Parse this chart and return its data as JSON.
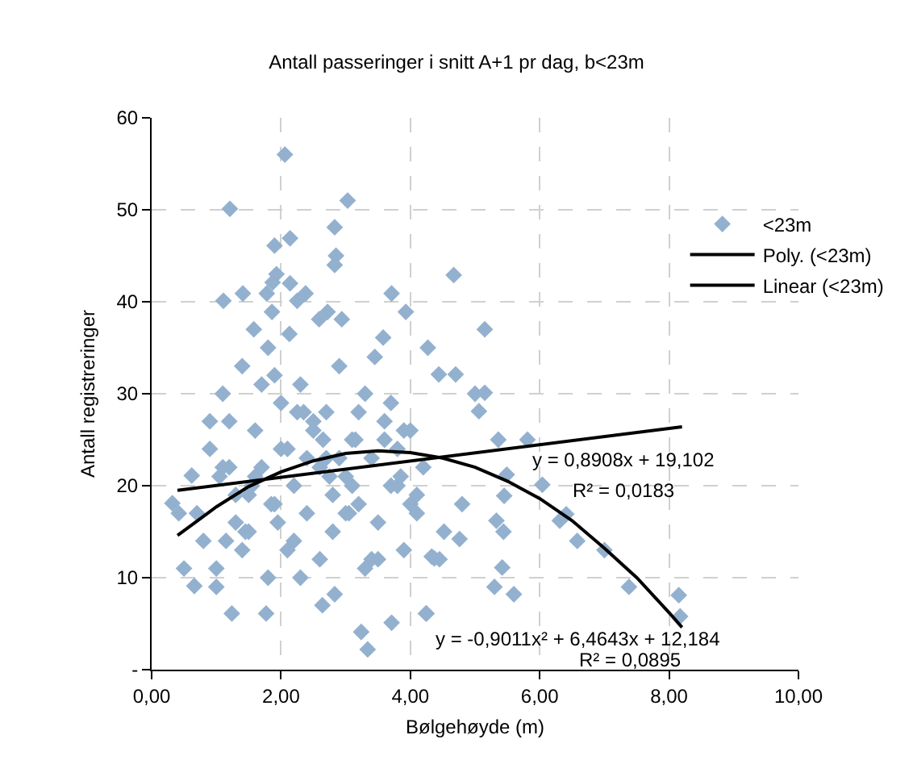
{
  "chart_data": {
    "type": "scatter",
    "title": "Antall passeringer i snitt A+1 pr dag, b<23m",
    "xlabel": "Bølgehøyde (m)",
    "ylabel": "Antall registreringer",
    "xlim": [
      0,
      10
    ],
    "xticks": [
      {
        "value": 0,
        "label": "0,00"
      },
      {
        "value": 2,
        "label": "2,00"
      },
      {
        "value": 4,
        "label": "4,00"
      },
      {
        "value": 6,
        "label": "6,00"
      },
      {
        "value": 8,
        "label": "8,00"
      },
      {
        "value": 10,
        "label": "10,00"
      }
    ],
    "ylim": [
      0,
      60
    ],
    "yticks": [
      {
        "value": 0,
        "label": "-"
      },
      10,
      20,
      30,
      40,
      50,
      60
    ],
    "grid": true,
    "legend": "right",
    "marker": "diamond",
    "series": [
      {
        "name": "<23m",
        "color": "#93b1cf",
        "x": [
          2.06,
          1.21,
          3.03,
          2.83,
          1.9,
          2.14,
          2.85,
          2.83,
          1.93,
          1.87,
          2.14,
          1.11,
          1.41,
          1.78,
          2.25,
          2.38,
          3.71,
          1.86,
          1.58,
          2.59,
          2.72,
          2.94,
          3.93,
          3.58,
          2.13,
          4.67,
          5.15,
          4.27,
          4.44,
          4.7,
          5.15,
          5.06,
          5.36,
          5.81,
          6.04,
          5.49,
          5.45,
          5.33,
          5.44,
          6.31,
          6.41,
          6.58,
          7.0,
          7.38,
          8.15,
          8.17,
          5.42,
          5.3,
          5.6,
          4.37,
          4.52,
          4.76,
          4.25,
          3.34,
          3.24,
          3.71,
          4.24,
          1.24,
          1.77,
          2.64,
          2.83,
          0.66,
          4.33,
          0.32,
          0.42,
          0.62,
          0.8,
          0.9,
          1.0,
          1.1,
          1.2,
          1.3,
          1.4,
          1.5,
          1.6,
          1.7,
          1.8,
          1.9,
          2.0,
          2.1,
          2.2,
          2.3,
          2.4,
          2.5,
          2.6,
          2.7,
          2.8,
          2.9,
          3.0,
          3.1,
          3.2,
          3.3,
          3.4,
          3.5,
          3.6,
          3.7,
          3.8,
          3.9,
          4.0,
          4.1,
          4.2,
          1.0,
          1.2,
          1.4,
          1.6,
          1.8,
          2.0,
          2.2,
          2.4,
          2.6,
          2.8,
          3.0,
          3.2,
          3.4,
          3.6,
          3.8,
          4.0,
          0.9,
          1.3,
          1.7,
          2.1,
          2.5,
          2.9,
          3.3,
          3.7,
          4.1,
          1.1,
          1.5,
          1.9,
          2.3,
          2.7,
          3.1,
          3.5,
          3.9,
          0.7,
          1.05,
          1.45,
          1.85,
          2.25,
          2.65,
          3.05,
          3.45,
          3.85,
          4.45,
          4.8,
          5.0,
          0.5,
          1.15,
          1.55,
          1.95,
          2.35,
          2.75,
          3.15
        ],
        "values": [
          56.0,
          50.1,
          51.0,
          48.1,
          46.1,
          46.9,
          45.0,
          44.0,
          43.0,
          42.1,
          42.0,
          40.1,
          40.9,
          40.9,
          40.1,
          40.9,
          40.9,
          38.9,
          37.0,
          38.1,
          38.9,
          38.1,
          38.9,
          36.1,
          36.5,
          42.9,
          37.0,
          35.0,
          32.1,
          32.1,
          30.1,
          28.1,
          25.0,
          25.0,
          20.1,
          21.2,
          18.9,
          16.2,
          15.0,
          16.2,
          16.9,
          14.0,
          13.0,
          9.0,
          8.1,
          5.8,
          11.1,
          9.0,
          8.2,
          12.1,
          15.0,
          14.2,
          6.1,
          2.2,
          4.1,
          5.1,
          6.1,
          6.1,
          6.1,
          7.0,
          8.2,
          9.1,
          12.3,
          18.1,
          17.0,
          21.1,
          14,
          24,
          11,
          30,
          27,
          19,
          33,
          15,
          26,
          22,
          35,
          18,
          29,
          24,
          20,
          31,
          17,
          26,
          22,
          28,
          15,
          33,
          21,
          25,
          18,
          30,
          23,
          16,
          27,
          20,
          24,
          13,
          26,
          19,
          22,
          9,
          22,
          13,
          21,
          10,
          24,
          14,
          23,
          12,
          19,
          17,
          28,
          12,
          25,
          20,
          18,
          27,
          16,
          31,
          13,
          27,
          23,
          11,
          29,
          17,
          22,
          19,
          32,
          10,
          23,
          20,
          12,
          26,
          17,
          21,
          15,
          18,
          28,
          25,
          17,
          34,
          21,
          12,
          18,
          30,
          11,
          14,
          20,
          16,
          28,
          21,
          25
        ]
      },
      {
        "name": "Poly. (<23m)",
        "type": "line",
        "color": "#000000",
        "marker": "none",
        "x": [
          0.4,
          1,
          1.5,
          2,
          2.5,
          3,
          3.5,
          4,
          4.5,
          5,
          5.5,
          6,
          6.5,
          7,
          7.5,
          8,
          8.2
        ],
        "values": [
          14.6,
          17.7,
          19.9,
          21.5,
          22.7,
          23.5,
          23.8,
          23.6,
          23.0,
          22.0,
          20.5,
          18.6,
          16.2,
          13.2,
          10.0,
          6.2,
          4.6
        ]
      },
      {
        "name": "Linear (<23m)",
        "type": "line",
        "color": "#000000",
        "marker": "none",
        "x": [
          0.4,
          8.2
        ],
        "values": [
          19.5,
          26.4
        ]
      }
    ],
    "annotations": [
      "y = 0,8908x + 19,102",
      "R² = 0,0183",
      "y = -0,9011x² + 6,4643x + 12,184",
      "R² = 0,0895"
    ]
  }
}
